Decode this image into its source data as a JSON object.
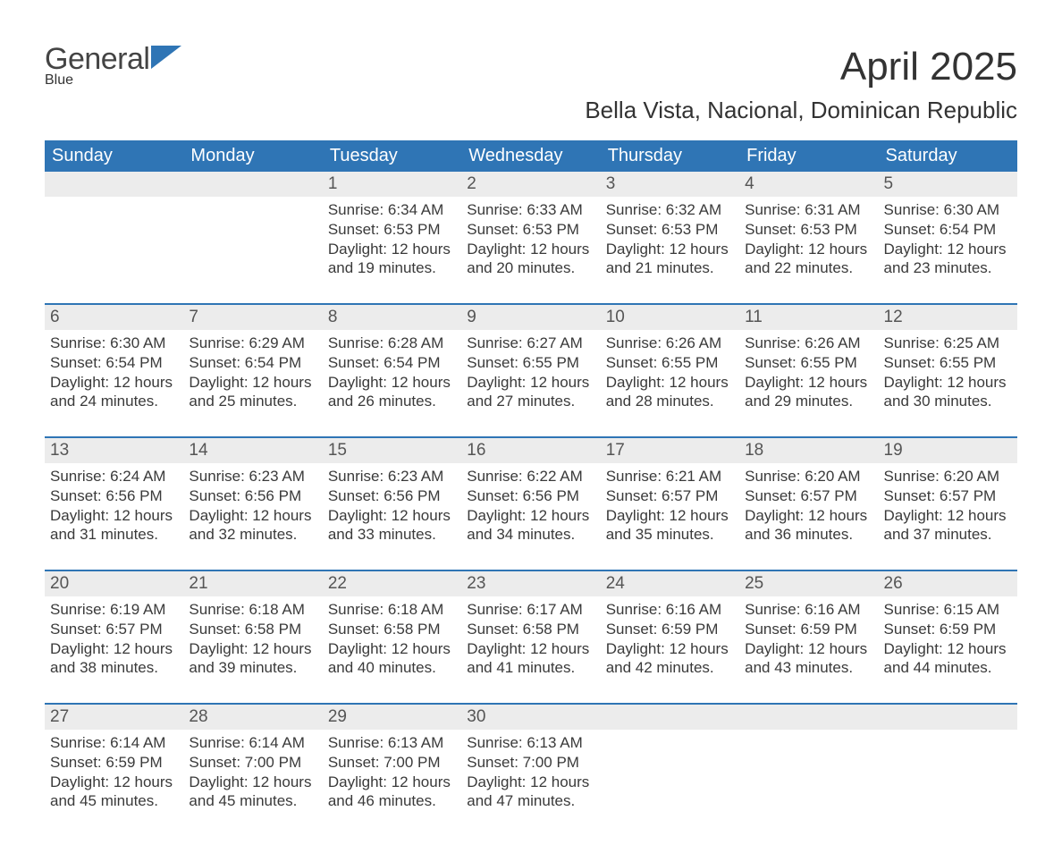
{
  "brand": {
    "word1": "General",
    "word2": "Blue"
  },
  "title": "April 2025",
  "subtitle": "Bella Vista, Nacional, Dominican Republic",
  "theme": {
    "header_bg": "#2f75b5",
    "header_fg": "#ffffff",
    "daynum_bg": "#ececec",
    "text_color": "#333333",
    "rule_color": "#2f75b5"
  },
  "day_headers": [
    "Sunday",
    "Monday",
    "Tuesday",
    "Wednesday",
    "Thursday",
    "Friday",
    "Saturday"
  ],
  "weeks": [
    [
      null,
      null,
      {
        "n": "1",
        "sunrise": "6:34 AM",
        "sunset": "6:53 PM",
        "daylight": "12 hours and 19 minutes."
      },
      {
        "n": "2",
        "sunrise": "6:33 AM",
        "sunset": "6:53 PM",
        "daylight": "12 hours and 20 minutes."
      },
      {
        "n": "3",
        "sunrise": "6:32 AM",
        "sunset": "6:53 PM",
        "daylight": "12 hours and 21 minutes."
      },
      {
        "n": "4",
        "sunrise": "6:31 AM",
        "sunset": "6:53 PM",
        "daylight": "12 hours and 22 minutes."
      },
      {
        "n": "5",
        "sunrise": "6:30 AM",
        "sunset": "6:54 PM",
        "daylight": "12 hours and 23 minutes."
      }
    ],
    [
      {
        "n": "6",
        "sunrise": "6:30 AM",
        "sunset": "6:54 PM",
        "daylight": "12 hours and 24 minutes."
      },
      {
        "n": "7",
        "sunrise": "6:29 AM",
        "sunset": "6:54 PM",
        "daylight": "12 hours and 25 minutes."
      },
      {
        "n": "8",
        "sunrise": "6:28 AM",
        "sunset": "6:54 PM",
        "daylight": "12 hours and 26 minutes."
      },
      {
        "n": "9",
        "sunrise": "6:27 AM",
        "sunset": "6:55 PM",
        "daylight": "12 hours and 27 minutes."
      },
      {
        "n": "10",
        "sunrise": "6:26 AM",
        "sunset": "6:55 PM",
        "daylight": "12 hours and 28 minutes."
      },
      {
        "n": "11",
        "sunrise": "6:26 AM",
        "sunset": "6:55 PM",
        "daylight": "12 hours and 29 minutes."
      },
      {
        "n": "12",
        "sunrise": "6:25 AM",
        "sunset": "6:55 PM",
        "daylight": "12 hours and 30 minutes."
      }
    ],
    [
      {
        "n": "13",
        "sunrise": "6:24 AM",
        "sunset": "6:56 PM",
        "daylight": "12 hours and 31 minutes."
      },
      {
        "n": "14",
        "sunrise": "6:23 AM",
        "sunset": "6:56 PM",
        "daylight": "12 hours and 32 minutes."
      },
      {
        "n": "15",
        "sunrise": "6:23 AM",
        "sunset": "6:56 PM",
        "daylight": "12 hours and 33 minutes."
      },
      {
        "n": "16",
        "sunrise": "6:22 AM",
        "sunset": "6:56 PM",
        "daylight": "12 hours and 34 minutes."
      },
      {
        "n": "17",
        "sunrise": "6:21 AM",
        "sunset": "6:57 PM",
        "daylight": "12 hours and 35 minutes."
      },
      {
        "n": "18",
        "sunrise": "6:20 AM",
        "sunset": "6:57 PM",
        "daylight": "12 hours and 36 minutes."
      },
      {
        "n": "19",
        "sunrise": "6:20 AM",
        "sunset": "6:57 PM",
        "daylight": "12 hours and 37 minutes."
      }
    ],
    [
      {
        "n": "20",
        "sunrise": "6:19 AM",
        "sunset": "6:57 PM",
        "daylight": "12 hours and 38 minutes."
      },
      {
        "n": "21",
        "sunrise": "6:18 AM",
        "sunset": "6:58 PM",
        "daylight": "12 hours and 39 minutes."
      },
      {
        "n": "22",
        "sunrise": "6:18 AM",
        "sunset": "6:58 PM",
        "daylight": "12 hours and 40 minutes."
      },
      {
        "n": "23",
        "sunrise": "6:17 AM",
        "sunset": "6:58 PM",
        "daylight": "12 hours and 41 minutes."
      },
      {
        "n": "24",
        "sunrise": "6:16 AM",
        "sunset": "6:59 PM",
        "daylight": "12 hours and 42 minutes."
      },
      {
        "n": "25",
        "sunrise": "6:16 AM",
        "sunset": "6:59 PM",
        "daylight": "12 hours and 43 minutes."
      },
      {
        "n": "26",
        "sunrise": "6:15 AM",
        "sunset": "6:59 PM",
        "daylight": "12 hours and 44 minutes."
      }
    ],
    [
      {
        "n": "27",
        "sunrise": "6:14 AM",
        "sunset": "6:59 PM",
        "daylight": "12 hours and 45 minutes."
      },
      {
        "n": "28",
        "sunrise": "6:14 AM",
        "sunset": "7:00 PM",
        "daylight": "12 hours and 45 minutes."
      },
      {
        "n": "29",
        "sunrise": "6:13 AM",
        "sunset": "7:00 PM",
        "daylight": "12 hours and 46 minutes."
      },
      {
        "n": "30",
        "sunrise": "6:13 AM",
        "sunset": "7:00 PM",
        "daylight": "12 hours and 47 minutes."
      },
      null,
      null,
      null
    ]
  ],
  "labels": {
    "sunrise": "Sunrise: ",
    "sunset": "Sunset: ",
    "daylight": "Daylight: "
  }
}
